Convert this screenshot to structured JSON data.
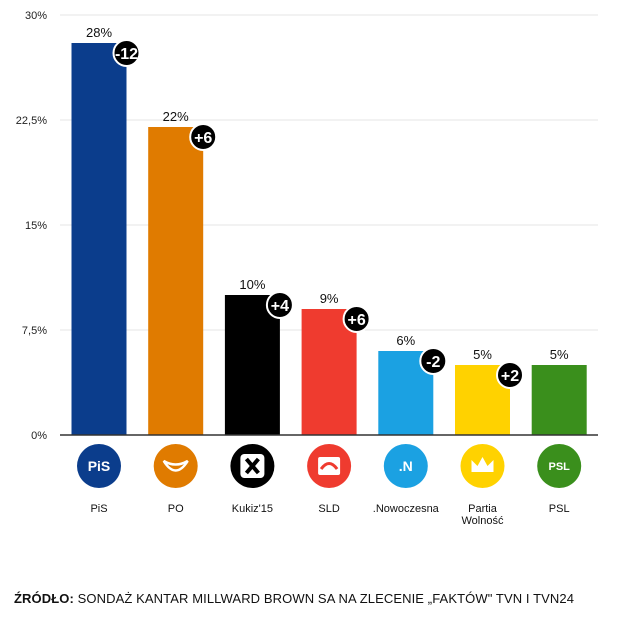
{
  "chart_data": {
    "type": "bar",
    "categories": [
      "PiS",
      "PO",
      "Kukiz'15",
      "SLD",
      ".Nowoczesna",
      "Partia Wolność",
      "PSL"
    ],
    "values": [
      28,
      22,
      10,
      9,
      6,
      5,
      5
    ],
    "value_labels": [
      "28%",
      "22%",
      "10%",
      "9%",
      "6%",
      "5%",
      "5%"
    ],
    "changes": [
      "-12",
      "+6",
      "+4",
      "+6",
      "-2",
      "+2",
      ""
    ],
    "colors": [
      "#0b3d8c",
      "#e07b00",
      "#000000",
      "#ef3b2f",
      "#1ba1e2",
      "#ffd200",
      "#3a8f1c"
    ],
    "logo_text": [
      "PiS",
      "",
      "",
      "",
      ".N",
      "",
      "PSL"
    ],
    "ylim": [
      0,
      30
    ],
    "yticks": [
      0,
      7.5,
      15,
      22.5,
      30
    ],
    "ytick_labels": [
      "0%",
      "7,5%",
      "15%",
      "22,5%",
      "30%"
    ],
    "grid": true,
    "title": "",
    "xlabel": "",
    "ylabel": ""
  },
  "source": {
    "label": "ŹRÓDŁO:",
    "text": " SONDAŻ KANTAR MILLWARD BROWN SA NA ZLECENIE „FAKTÓW\" TVN I TVN24"
  }
}
